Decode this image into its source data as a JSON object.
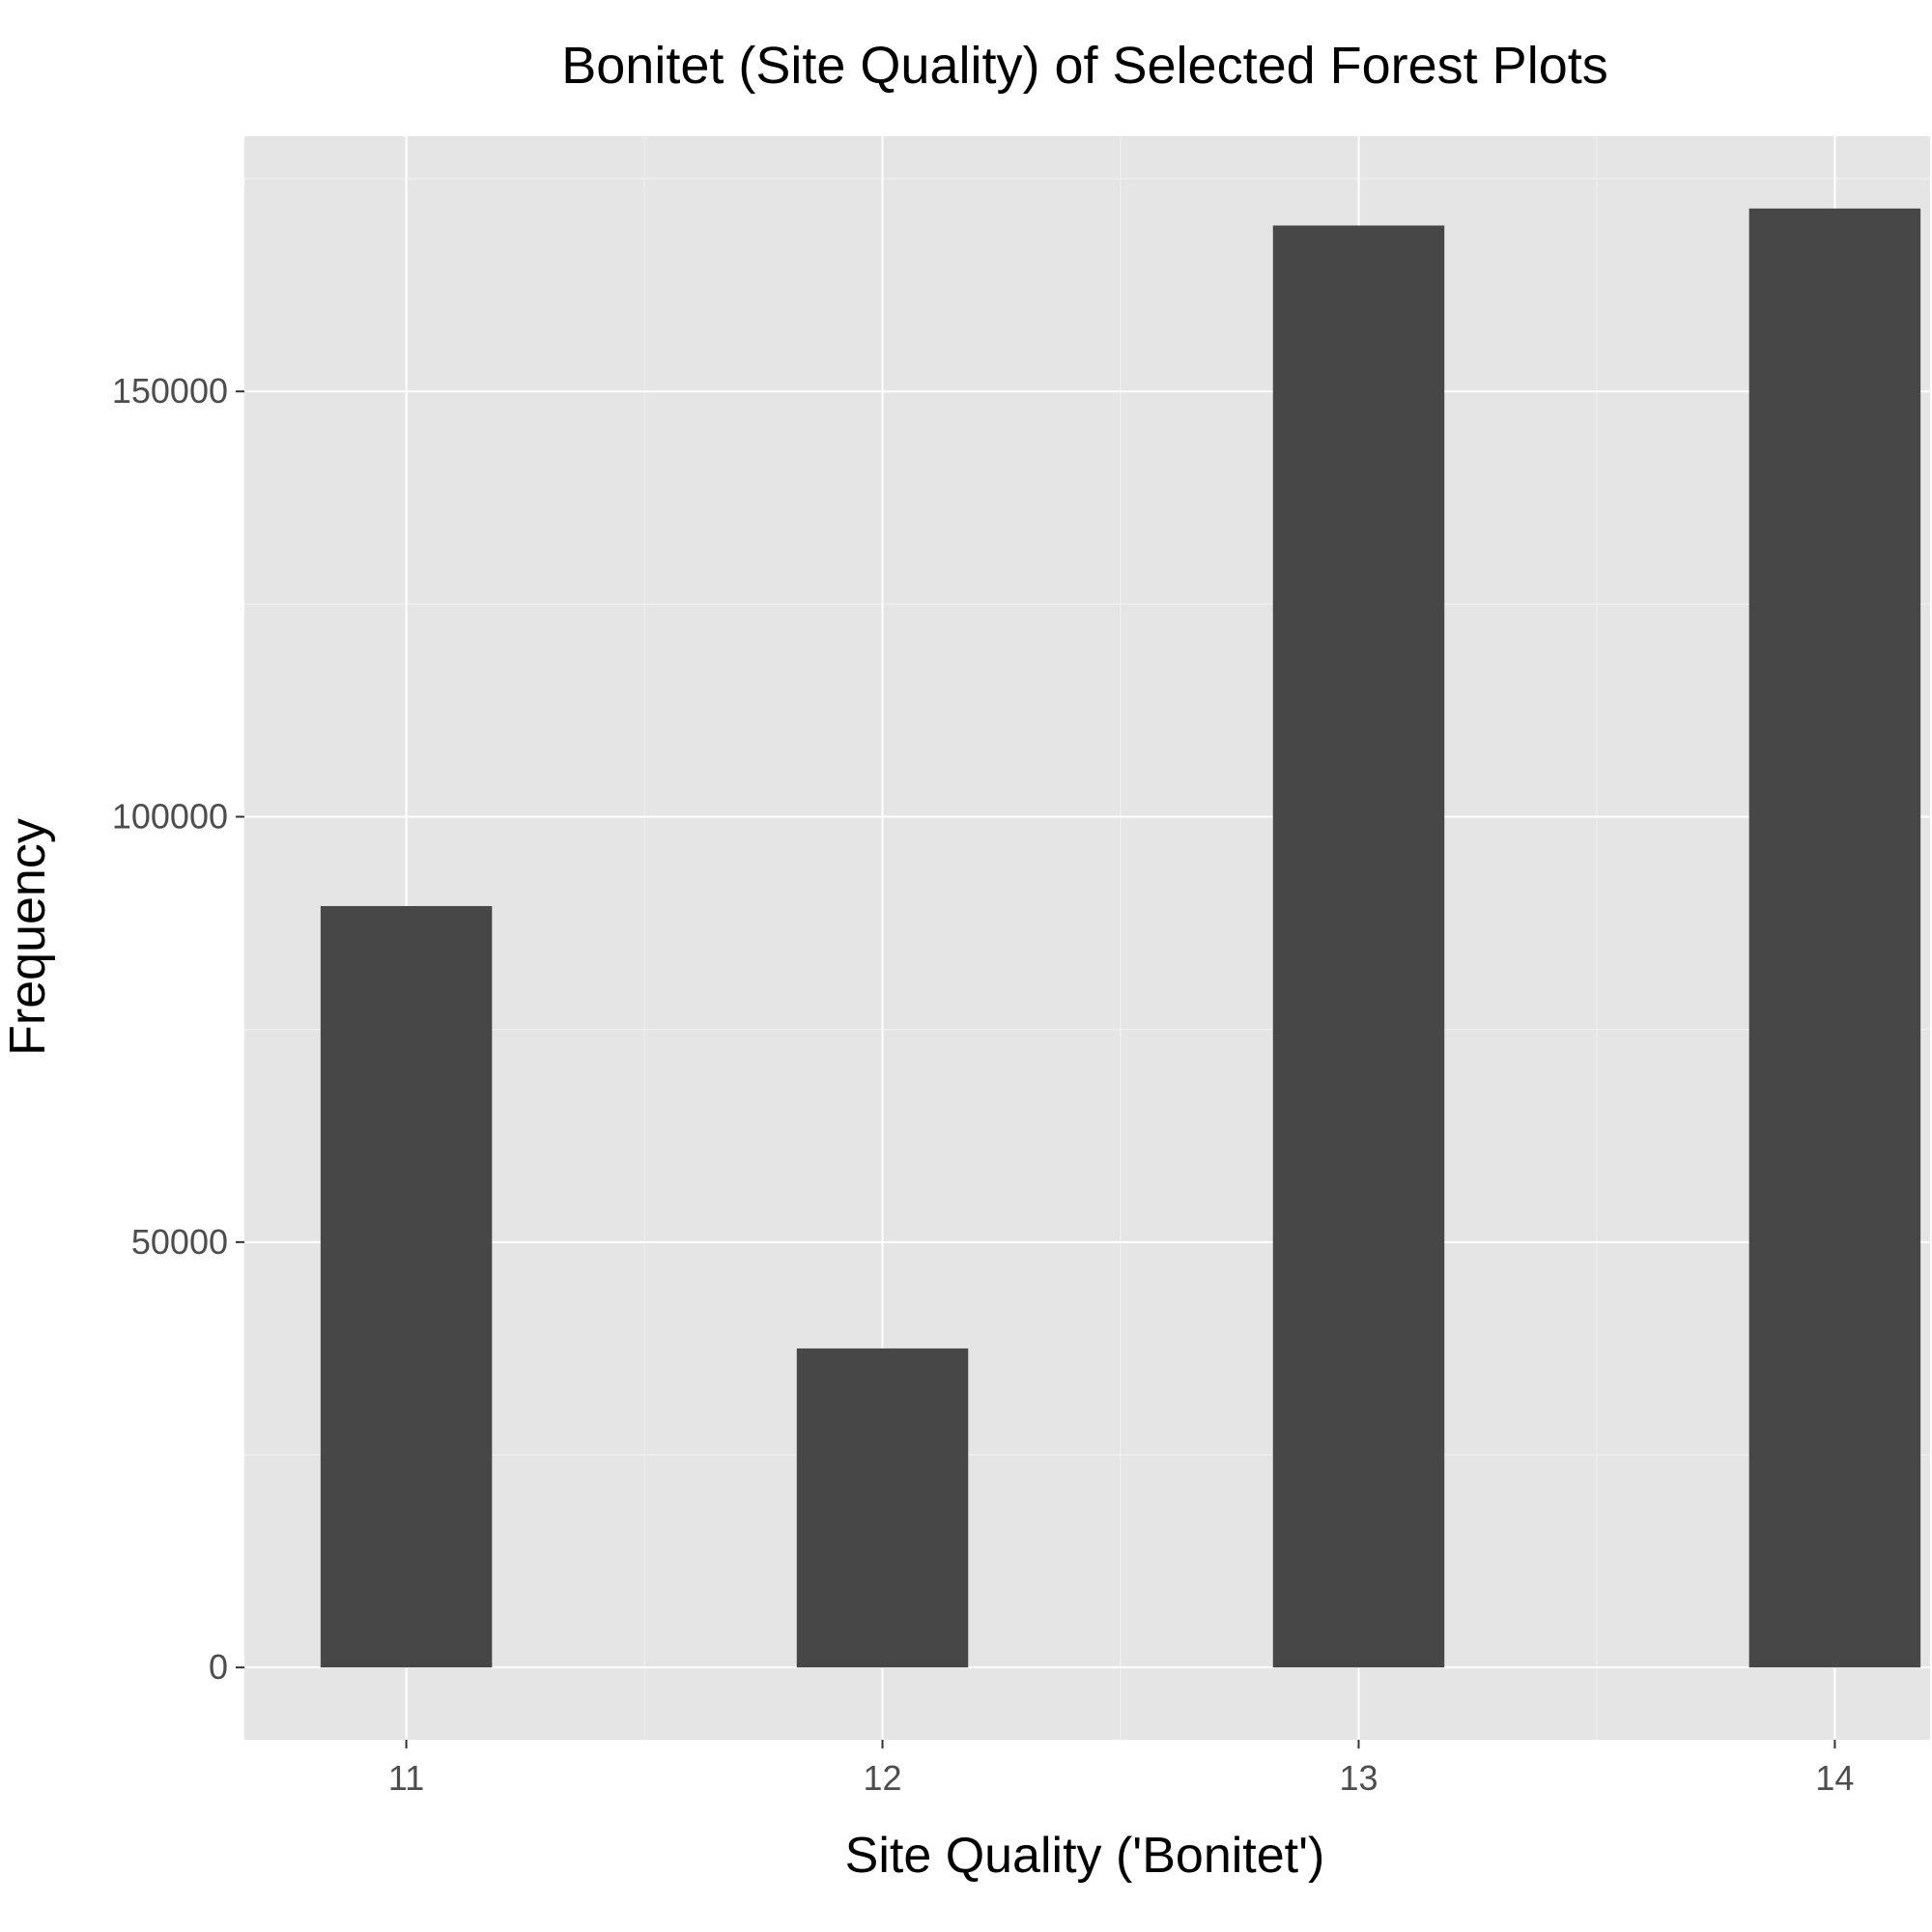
{
  "chart_data": {
    "type": "bar",
    "title": "Bonitet (Site Quality) of Selected Forest Plots",
    "xlabel": "Site Quality ('Bonitet')",
    "ylabel": "Frequency",
    "categories": [
      "11",
      "12",
      "13",
      "14"
    ],
    "x": [
      11,
      12,
      13,
      14
    ],
    "values": [
      89500,
      37500,
      169500,
      171500
    ],
    "xlim": [
      10.66,
      14.2
    ],
    "ylim": [
      -8500,
      180000
    ],
    "xticks": [
      "11",
      "12",
      "13",
      "14"
    ],
    "yticks": [
      "0",
      "50000",
      "100000",
      "150000"
    ],
    "grid": true,
    "legend": "none"
  },
  "colors": {
    "panel_background": "#e5e5e5",
    "bar_fill": "#474747",
    "grid_major": "#ffffff",
    "grid_minor": "#f0f0f0",
    "tick_text": "#4d4d4d",
    "text": "#000000"
  }
}
